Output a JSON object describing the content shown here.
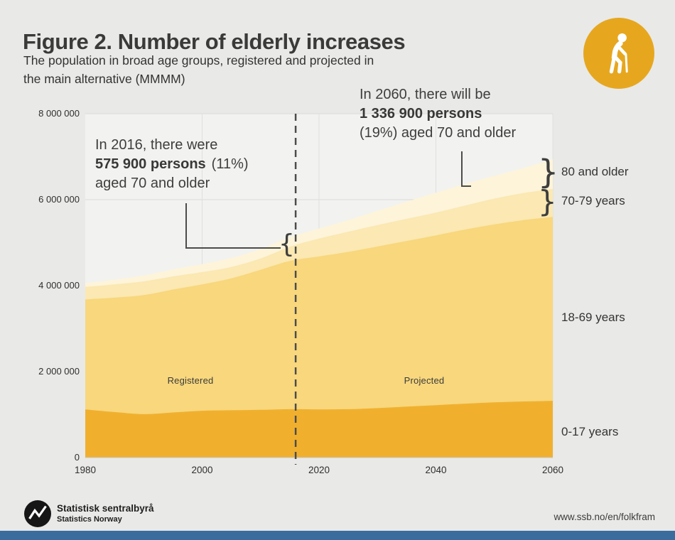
{
  "colors": {
    "page_bg": "#e9e9e7",
    "plot_bg": "#f2f2f0",
    "icon_circle": "#e6a71f",
    "accent_blue_bar": "#3a6d9e",
    "band_0_17": "#f0b02e",
    "band_18_69": "#f8d77d",
    "band_70_79": "#fbe8b2",
    "band_80_plus": "#fdf4da",
    "divider_line": "#4c4c4b",
    "text_dark": "#3a3a39"
  },
  "header": {
    "title": "Figure 2. Number of elderly increases",
    "subtitle_line1": "The population in broad age groups, registered and projected in",
    "subtitle_line2": "the main alternative (MMMM)",
    "icon": "elderly-person-with-cane-icon"
  },
  "chart_data": {
    "type": "area",
    "stacked": true,
    "x": [
      1980,
      1985,
      1990,
      1995,
      2000,
      2005,
      2010,
      2015,
      2020,
      2025,
      2030,
      2035,
      2040,
      2045,
      2050,
      2055,
      2060
    ],
    "series": [
      {
        "name": "0-17 years",
        "color": "#f0b02e",
        "values": [
          1120000,
          1060000,
          1010000,
          1050000,
          1090000,
          1100000,
          1110000,
          1125000,
          1120000,
          1125000,
          1150000,
          1185000,
          1220000,
          1255000,
          1285000,
          1305000,
          1320000
        ]
      },
      {
        "name": "18-69 years",
        "color": "#f8d77d",
        "values": [
          2560000,
          2660000,
          2770000,
          2860000,
          2940000,
          3070000,
          3260000,
          3450000,
          3560000,
          3660000,
          3760000,
          3855000,
          3950000,
          4050000,
          4140000,
          4220000,
          4280000
        ]
      },
      {
        "name": "70-79 years",
        "color": "#fbe8b2",
        "values": [
          290000,
          310000,
          320000,
          305000,
          285000,
          265000,
          262000,
          330000,
          415000,
          470000,
          500000,
          515000,
          530000,
          560000,
          600000,
          630000,
          650000
        ]
      },
      {
        "name": "80 and older",
        "color": "#fdf4da",
        "values": [
          90000,
          110000,
          135000,
          160000,
          185000,
          210000,
          220000,
          222000,
          232000,
          270000,
          330000,
          400000,
          460000,
          500000,
          530000,
          580000,
          690000
        ]
      }
    ],
    "ylim": [
      0,
      8000000
    ],
    "ytick_values": [
      0,
      2000000,
      4000000,
      6000000,
      8000000
    ],
    "ytick_labels": [
      "0",
      "2 000 000",
      "4 000 000",
      "6 000 000",
      "8 000 000"
    ],
    "xtick_values": [
      1980,
      2000,
      2020,
      2040,
      2060
    ],
    "xtick_labels": [
      "1980",
      "2000",
      "2020",
      "2040",
      "2060"
    ],
    "divider_year": 2016,
    "grid": true,
    "legend_position": "right-side-band-labels",
    "region_labels": {
      "left": "Registered",
      "right": "Projected"
    }
  },
  "annotations": {
    "a2016": {
      "line1": "In 2016, there were",
      "bold": "575 900 persons",
      "after_bold": "(11%)",
      "line3": "aged 70 and older"
    },
    "a2060": {
      "line1": "In 2060, there will be",
      "bold": "1 336 900 persons",
      "line3": "(19%) aged 70 and older"
    }
  },
  "band_labels": [
    "80 and older",
    "70-79 years",
    "18-69 years",
    "0-17 years"
  ],
  "glyphs": {
    "left_brace": "{",
    "right_brace": "}"
  },
  "footer": {
    "org_name": "Statistisk sentralbyrå",
    "org_name_en": "Statistics Norway",
    "url": "www.ssb.no/en/folkfram",
    "logo": "ssb-logo"
  }
}
